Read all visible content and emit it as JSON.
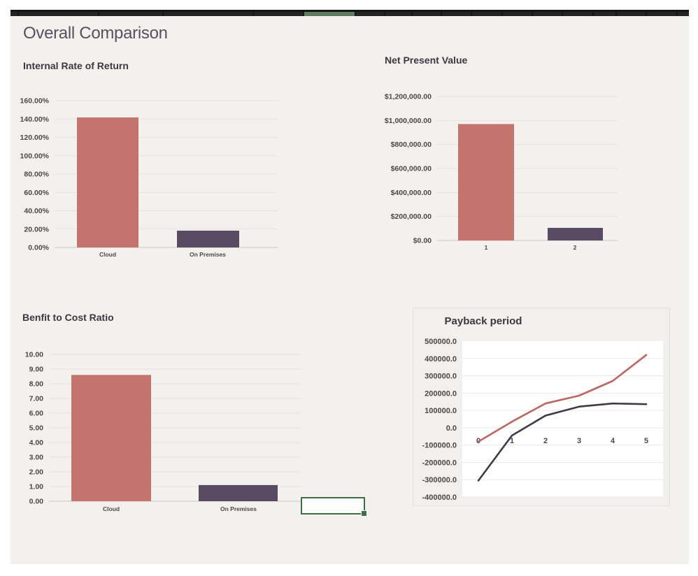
{
  "app": {
    "page_title": "Overall Comparison"
  },
  "sheet": {
    "top_strip": {
      "dark_color": "#232323",
      "gap_color": "#7a7a7a",
      "green_color": "#5d7d5e",
      "green_index": 5,
      "segments": [
        [
          0,
          10
        ],
        [
          12,
          113
        ],
        [
          127,
          90
        ],
        [
          219,
          127
        ],
        [
          348,
          70
        ],
        [
          420,
          72
        ],
        [
          494,
          40
        ],
        [
          536,
          37
        ],
        [
          575,
          40
        ],
        [
          617,
          41
        ],
        [
          660,
          42
        ],
        [
          704,
          41
        ],
        [
          747,
          41
        ],
        [
          790,
          42
        ],
        [
          834,
          31
        ],
        [
          867,
          41
        ],
        [
          910,
          42
        ],
        [
          954,
          16
        ]
      ]
    },
    "selected_cell": {
      "border_color": "#3c6e47"
    }
  },
  "chart_data": [
    {
      "id": "irr",
      "type": "bar",
      "title": "Internal Rate of Return",
      "categories": [
        "Cloud",
        "On Premises"
      ],
      "values": [
        141.7,
        18.3
      ],
      "y_ticks": [
        "160.00%",
        "140.00%",
        "120.00%",
        "100.00%",
        "80.00%",
        "60.00%",
        "40.00%",
        "20.00%",
        "0.00%"
      ],
      "ylim": [
        0,
        160
      ],
      "ylabel": "",
      "xlabel": "",
      "bar_colors": [
        "#c4736d",
        "#594c62"
      ],
      "grid": true,
      "legend": "none"
    },
    {
      "id": "npv",
      "type": "bar",
      "title": "Net Present Value",
      "categories": [
        "1",
        "2"
      ],
      "values": [
        970000,
        105000
      ],
      "y_ticks": [
        "$1,200,000.00",
        "$1,000,000.00",
        "$800,000.00",
        "$600,000.00",
        "$400,000.00",
        "$200,000.00",
        "$0.00"
      ],
      "ylim": [
        0,
        1200000
      ],
      "ylabel": "",
      "xlabel": "",
      "bar_colors": [
        "#c4736d",
        "#594c62"
      ],
      "grid": true,
      "legend": "none"
    },
    {
      "id": "bcr",
      "type": "bar",
      "title": "Benfit to Cost Ratio",
      "categories": [
        "Cloud",
        "On Premises"
      ],
      "values": [
        8.6,
        1.1
      ],
      "y_ticks": [
        "10.00",
        "9.00",
        "8.00",
        "7.00",
        "6.00",
        "5.00",
        "4.00",
        "3.00",
        "2.00",
        "1.00",
        "0.00"
      ],
      "ylim": [
        0,
        10
      ],
      "ylabel": "",
      "xlabel": "",
      "bar_colors": [
        "#c4736d",
        "#594c62"
      ],
      "grid": true,
      "legend": "none"
    },
    {
      "id": "payback",
      "type": "line",
      "title": "Payback period",
      "x": [
        0,
        1,
        2,
        3,
        4,
        5
      ],
      "x_ticks": [
        "0",
        "1",
        "2",
        "3",
        "4",
        "5"
      ],
      "y_ticks": [
        "500000.0",
        "400000.0",
        "300000.0",
        "200000.0",
        "100000.0",
        "0.0",
        "-100000.0",
        "-200000.0",
        "-300000.0",
        "-400000.0"
      ],
      "ylim": [
        -400000,
        500000
      ],
      "xlim": [
        0,
        5
      ],
      "series": [
        {
          "color": "#c0655f",
          "values": [
            -80000,
            35000,
            140000,
            185000,
            270000,
            420000
          ]
        },
        {
          "color": "#413949",
          "values": [
            -305000,
            -45000,
            70000,
            122000,
            140000,
            136000
          ]
        }
      ],
      "grid": true,
      "legend": "none",
      "plot_bg": "#ffffff"
    }
  ],
  "colors": {
    "page_bg": "#ffffff",
    "sheet_bg": "#f3f1ee",
    "title_color": "#57505e",
    "chart_title_color": "#3b383f",
    "tick_color": "#4a4846",
    "gridline_gray": "#e5e2dd",
    "gridline_white": "#e9e9e9",
    "axis_line": "#d2cfc8"
  }
}
